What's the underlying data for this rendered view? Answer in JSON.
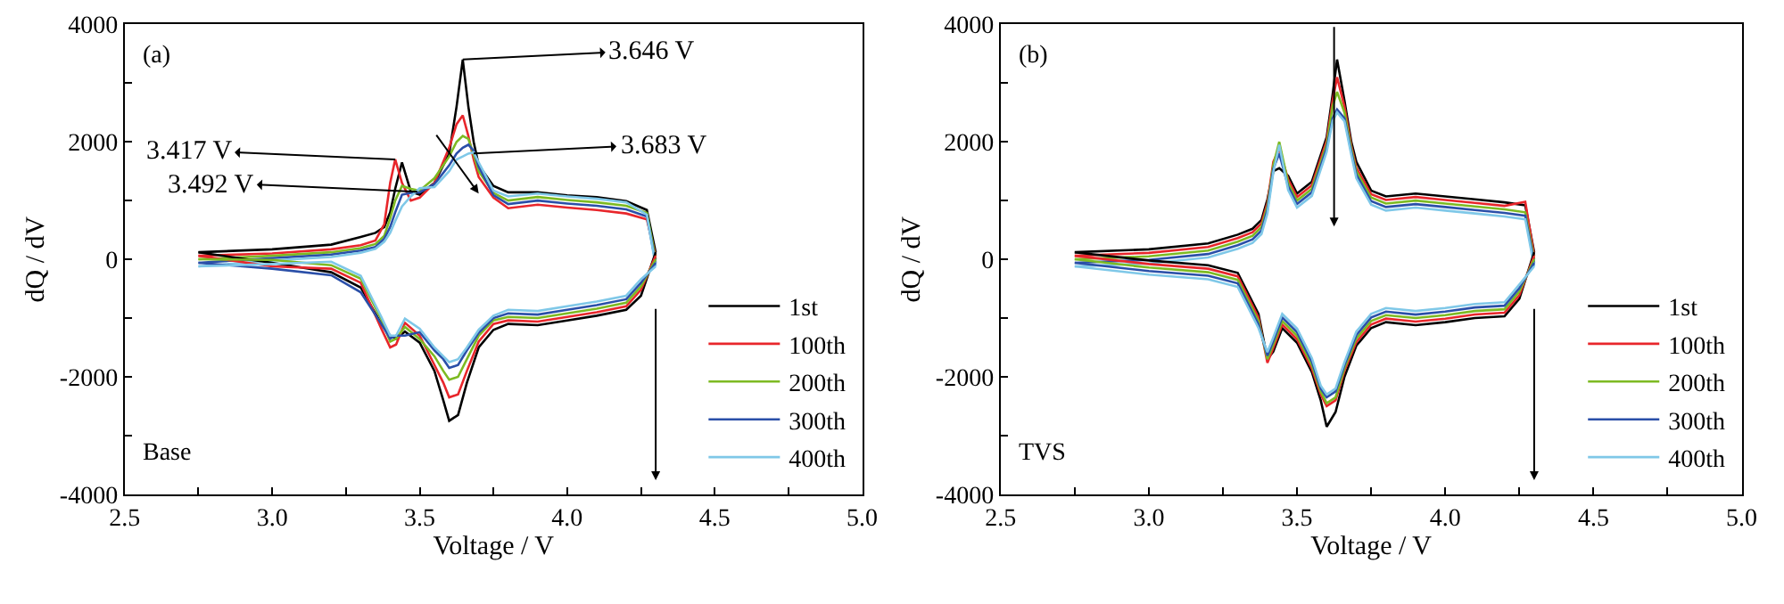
{
  "chart_data": [
    {
      "type": "line",
      "xlabel": "Voltage / V",
      "ylabel": "dQ / dV",
      "legend": "bottom right",
      "grid": false,
      "xlim": [
        2.5,
        5.0
      ],
      "ylim": [
        -4000,
        4000
      ],
      "xticks": [
        {
          "value": 2.5,
          "label": "2.5"
        },
        {
          "value": 2.75,
          "label": null
        },
        {
          "value": 3.0,
          "label": "3.0"
        },
        {
          "value": 3.25,
          "label": null
        },
        {
          "value": 3.5,
          "label": "3.5"
        },
        {
          "value": 3.75,
          "label": null
        },
        {
          "value": 4.0,
          "label": "4.0"
        },
        {
          "value": 4.25,
          "label": null
        },
        {
          "value": 4.5,
          "label": "4.5"
        },
        {
          "value": 4.75,
          "label": null
        },
        {
          "value": 5.0,
          "label": "5.0"
        }
      ],
      "yticks": [
        -4000,
        {
          "value": -3000,
          "label": null
        },
        -2000,
        {
          "value": -1000,
          "label": null
        },
        0,
        {
          "value": 1000,
          "label": null
        },
        2000,
        {
          "value": 3000,
          "label": null
        },
        4000
      ],
      "annotations": [
        "(a)",
        "Base",
        {
          "text": "3.646 V",
          "x": 3.646,
          "y": 3400
        },
        {
          "text": "3.417 V",
          "x": 3.417,
          "y": 1700
        },
        {
          "text": "3.683 V",
          "x": 3.683,
          "y": 1800
        },
        {
          "text": "3.492 V",
          "x": 3.492,
          "y": 1150
        }
      ],
      "x": [
        2.75,
        3.0,
        3.2,
        3.3,
        3.35,
        3.38,
        3.4,
        3.417,
        3.44,
        3.47,
        3.5,
        3.55,
        3.6,
        3.625,
        3.646,
        3.665,
        3.683,
        3.7,
        3.75,
        3.8,
        3.9,
        4.0,
        4.1,
        4.2,
        4.27,
        4.3
      ],
      "series": [
        {
          "name": "1st",
          "color": "#000000",
          "values": [
            120,
            170,
            250,
            380,
            450,
            550,
            800,
            1200,
            1650,
            1150,
            1100,
            1300,
            1800,
            2600,
            3400,
            2600,
            2000,
            1600,
            1250,
            1140,
            1140,
            1090,
            1060,
            990,
            840,
            120
          ]
        },
        {
          "name": "100th",
          "color": "#e8262b",
          "values": [
            60,
            100,
            170,
            240,
            320,
            600,
            1300,
            1700,
            1300,
            1000,
            1050,
            1300,
            1900,
            2300,
            2450,
            2100,
            1700,
            1400,
            1050,
            870,
            930,
            880,
            840,
            780,
            680,
            60
          ]
        },
        {
          "name": "200th",
          "color": "#7dba22",
          "values": [
            0,
            60,
            120,
            190,
            260,
            400,
            700,
            1000,
            1250,
            1200,
            1170,
            1380,
            1750,
            2000,
            2100,
            2050,
            1780,
            1500,
            1130,
            1000,
            1060,
            1010,
            970,
            910,
            790,
            0
          ]
        },
        {
          "name": "300th",
          "color": "#2a4fa8",
          "values": [
            -60,
            20,
            80,
            150,
            210,
            350,
            550,
            800,
            1100,
            1130,
            1140,
            1280,
            1600,
            1800,
            1900,
            1950,
            1850,
            1580,
            1090,
            940,
            1000,
            950,
            910,
            850,
            730,
            -60
          ]
        },
        {
          "name": "400th",
          "color": "#7fc8e8",
          "values": [
            -120,
            -20,
            40,
            110,
            180,
            300,
            450,
            650,
            900,
            1070,
            1210,
            1230,
            1500,
            1700,
            1750,
            1800,
            1820,
            1650,
            1170,
            1070,
            1120,
            1070,
            1030,
            970,
            760,
            -120
          ]
        },
        {
          "color": "#000000",
          "x": [
            2.75,
            3.0,
            3.2,
            3.3,
            3.37,
            3.4,
            3.42,
            3.45,
            3.5,
            3.55,
            3.58,
            3.6,
            3.63,
            3.66,
            3.7,
            3.75,
            3.8,
            3.9,
            4.0,
            4.1,
            4.2,
            4.25,
            4.3
          ],
          "values": [
            120,
            -60,
            -220,
            -480,
            -1100,
            -1300,
            -1350,
            -1230,
            -1420,
            -1900,
            -2400,
            -2750,
            -2650,
            -2100,
            -1500,
            -1200,
            -1100,
            -1120,
            -1040,
            -960,
            -860,
            -620,
            120
          ]
        },
        {
          "color": "#e8262b",
          "x": [
            2.75,
            3.0,
            3.2,
            3.3,
            3.37,
            3.4,
            3.42,
            3.45,
            3.5,
            3.55,
            3.58,
            3.6,
            3.63,
            3.66,
            3.7,
            3.75,
            3.8,
            3.9,
            4.0,
            4.1,
            4.2,
            4.25,
            4.3
          ],
          "values": [
            60,
            -120,
            -160,
            -400,
            -1180,
            -1500,
            -1450,
            -1080,
            -1300,
            -1800,
            -2100,
            -2350,
            -2300,
            -1900,
            -1400,
            -1100,
            -1040,
            -1060,
            -980,
            -900,
            -800,
            -520,
            60
          ]
        },
        {
          "color": "#7dba22",
          "x": [
            2.75,
            3.0,
            3.2,
            3.3,
            3.37,
            3.4,
            3.42,
            3.45,
            3.5,
            3.55,
            3.58,
            3.6,
            3.63,
            3.66,
            3.7,
            3.75,
            3.8,
            3.9,
            4.0,
            4.1,
            4.2,
            4.25,
            4.3
          ],
          "values": [
            0,
            -10,
            -100,
            -330,
            -1020,
            -1400,
            -1350,
            -1150,
            -1360,
            -1650,
            -1900,
            -2050,
            -2000,
            -1700,
            -1300,
            -1040,
            -980,
            -1000,
            -920,
            -840,
            -740,
            -460,
            0
          ]
        },
        {
          "color": "#2a4fa8",
          "x": [
            2.75,
            3.0,
            3.2,
            3.3,
            3.37,
            3.4,
            3.42,
            3.45,
            3.5,
            3.55,
            3.58,
            3.6,
            3.63,
            3.66,
            3.7,
            3.75,
            3.8,
            3.9,
            4.0,
            4.1,
            4.2,
            4.25,
            4.3
          ],
          "values": [
            -60,
            -160,
            -270,
            -560,
            -1100,
            -1350,
            -1300,
            -1300,
            -1240,
            -1550,
            -1700,
            -1850,
            -1800,
            -1550,
            -1250,
            -1000,
            -920,
            -940,
            -860,
            -780,
            -680,
            -400,
            -60
          ]
        },
        {
          "color": "#7fc8e8",
          "x": [
            2.75,
            3.0,
            3.2,
            3.3,
            3.37,
            3.4,
            3.42,
            3.45,
            3.5,
            3.55,
            3.58,
            3.6,
            3.63,
            3.66,
            3.7,
            3.75,
            3.8,
            3.9,
            4.0,
            4.1,
            4.2,
            4.25,
            4.3
          ],
          "values": [
            -120,
            -80,
            -40,
            -280,
            -980,
            -1300,
            -1300,
            -1010,
            -1180,
            -1500,
            -1650,
            -1750,
            -1700,
            -1500,
            -1200,
            -960,
            -860,
            -880,
            -800,
            -720,
            -620,
            -340,
            -120
          ]
        }
      ]
    },
    {
      "type": "line",
      "xlabel": "Voltage / V",
      "ylabel": "dQ / dV",
      "legend": "bottom right",
      "grid": false,
      "xlim": [
        2.5,
        5.0
      ],
      "ylim": [
        -4000,
        4000
      ],
      "xticks": [
        {
          "value": 2.5,
          "label": "2.5"
        },
        {
          "value": 2.75,
          "label": null
        },
        {
          "value": 3.0,
          "label": "3.0"
        },
        {
          "value": 3.25,
          "label": null
        },
        {
          "value": 3.5,
          "label": "3.5"
        },
        {
          "value": 3.75,
          "label": null
        },
        {
          "value": 4.0,
          "label": "4.0"
        },
        {
          "value": 4.25,
          "label": null
        },
        {
          "value": 4.5,
          "label": "4.5"
        },
        {
          "value": 4.75,
          "label": null
        },
        {
          "value": 5.0,
          "label": "5.0"
        }
      ],
      "yticks": [
        -4000,
        {
          "value": -3000,
          "label": null
        },
        -2000,
        {
          "value": -1000,
          "label": null
        },
        0,
        {
          "value": 1000,
          "label": null
        },
        2000,
        {
          "value": 3000,
          "label": null
        },
        4000
      ],
      "annotations": [
        "(b)",
        "TVS"
      ],
      "x": [
        2.75,
        3.0,
        3.2,
        3.3,
        3.35,
        3.38,
        3.4,
        3.42,
        3.44,
        3.47,
        3.5,
        3.55,
        3.6,
        3.62,
        3.635,
        3.66,
        3.683,
        3.7,
        3.75,
        3.8,
        3.9,
        4.0,
        4.1,
        4.2,
        4.27,
        4.3
      ],
      "series": [
        {
          "name": "1st",
          "color": "#000000",
          "values": [
            120,
            170,
            270,
            420,
            520,
            670,
            1020,
            1500,
            1550,
            1420,
            1120,
            1320,
            2080,
            2800,
            3400,
            2700,
            2000,
            1660,
            1170,
            1070,
            1120,
            1070,
            1020,
            970,
            920,
            120
          ]
        },
        {
          "name": "100th",
          "color": "#e8262b",
          "values": [
            60,
            110,
            210,
            360,
            460,
            610,
            960,
            1660,
            1880,
            1360,
            1060,
            1260,
            2020,
            2700,
            3100,
            2600,
            1930,
            1560,
            1110,
            1010,
            1060,
            1010,
            960,
            910,
            980,
            60
          ]
        },
        {
          "name": "200th",
          "color": "#7dba22",
          "values": [
            0,
            50,
            150,
            300,
            400,
            550,
            900,
            1600,
            2000,
            1300,
            1000,
            1200,
            1950,
            2600,
            2850,
            2500,
            1890,
            1500,
            1050,
            950,
            1000,
            950,
            900,
            850,
            800,
            0
          ]
        },
        {
          "name": "300th",
          "color": "#2a4fa8",
          "values": [
            -60,
            -10,
            90,
            240,
            340,
            490,
            840,
            1540,
            1800,
            1240,
            940,
            1140,
            1890,
            2400,
            2550,
            2400,
            1830,
            1440,
            990,
            890,
            940,
            890,
            840,
            790,
            740,
            -60
          ]
        },
        {
          "name": "400th",
          "color": "#7fc8e8",
          "values": [
            -120,
            -70,
            30,
            180,
            280,
            430,
            780,
            1480,
            1950,
            1180,
            880,
            1080,
            1830,
            2350,
            2500,
            2350,
            1780,
            1380,
            930,
            830,
            880,
            830,
            780,
            730,
            680,
            -120
          ]
        },
        {
          "color": "#000000",
          "x": [
            2.75,
            3.0,
            3.2,
            3.3,
            3.37,
            3.4,
            3.42,
            3.45,
            3.5,
            3.55,
            3.58,
            3.6,
            3.63,
            3.66,
            3.7,
            3.75,
            3.8,
            3.9,
            4.0,
            4.1,
            4.2,
            4.25,
            4.3
          ],
          "values": [
            120,
            -20,
            -100,
            -230,
            -930,
            -1700,
            -1570,
            -1170,
            -1420,
            -1920,
            -2400,
            -2850,
            -2600,
            -2000,
            -1470,
            -1170,
            -1070,
            -1120,
            -1070,
            -1000,
            -970,
            -670,
            120
          ]
        },
        {
          "color": "#e8262b",
          "x": [
            2.75,
            3.0,
            3.2,
            3.3,
            3.37,
            3.4,
            3.42,
            3.45,
            3.5,
            3.55,
            3.58,
            3.6,
            3.63,
            3.66,
            3.7,
            3.75,
            3.8,
            3.9,
            4.0,
            4.1,
            4.2,
            4.25,
            4.3
          ],
          "values": [
            60,
            -80,
            -160,
            -290,
            -990,
            -1760,
            -1510,
            -1110,
            -1360,
            -1860,
            -2300,
            -2500,
            -2400,
            -1900,
            -1410,
            -1110,
            -1010,
            -1060,
            -1010,
            -940,
            -910,
            -610,
            60
          ]
        },
        {
          "color": "#7dba22",
          "x": [
            2.75,
            3.0,
            3.2,
            3.3,
            3.37,
            3.4,
            3.42,
            3.45,
            3.5,
            3.55,
            3.58,
            3.6,
            3.63,
            3.66,
            3.7,
            3.75,
            3.8,
            3.9,
            4.0,
            4.1,
            4.2,
            4.25,
            4.3
          ],
          "values": [
            0,
            -140,
            -220,
            -350,
            -1050,
            -1700,
            -1450,
            -1050,
            -1300,
            -1800,
            -2250,
            -2450,
            -2350,
            -1850,
            -1350,
            -1050,
            -950,
            -1000,
            -950,
            -880,
            -850,
            -550,
            0
          ]
        },
        {
          "color": "#2a4fa8",
          "x": [
            2.75,
            3.0,
            3.2,
            3.3,
            3.37,
            3.4,
            3.42,
            3.45,
            3.5,
            3.55,
            3.58,
            3.6,
            3.63,
            3.66,
            3.7,
            3.75,
            3.8,
            3.9,
            4.0,
            4.1,
            4.2,
            4.25,
            4.3
          ],
          "values": [
            -60,
            -200,
            -280,
            -410,
            -1110,
            -1640,
            -1390,
            -990,
            -1240,
            -1740,
            -2200,
            -2350,
            -2250,
            -1800,
            -1290,
            -990,
            -890,
            -940,
            -890,
            -820,
            -790,
            -490,
            -60
          ]
        },
        {
          "color": "#7fc8e8",
          "x": [
            2.75,
            3.0,
            3.2,
            3.3,
            3.37,
            3.4,
            3.42,
            3.45,
            3.5,
            3.55,
            3.58,
            3.6,
            3.63,
            3.66,
            3.7,
            3.75,
            3.8,
            3.9,
            4.0,
            4.1,
            4.2,
            4.25,
            4.3
          ],
          "values": [
            -120,
            -260,
            -340,
            -470,
            -1170,
            -1580,
            -1330,
            -930,
            -1180,
            -1680,
            -2150,
            -2300,
            -2200,
            -1750,
            -1230,
            -930,
            -830,
            -880,
            -830,
            -760,
            -730,
            -430,
            -120
          ]
        }
      ]
    }
  ]
}
